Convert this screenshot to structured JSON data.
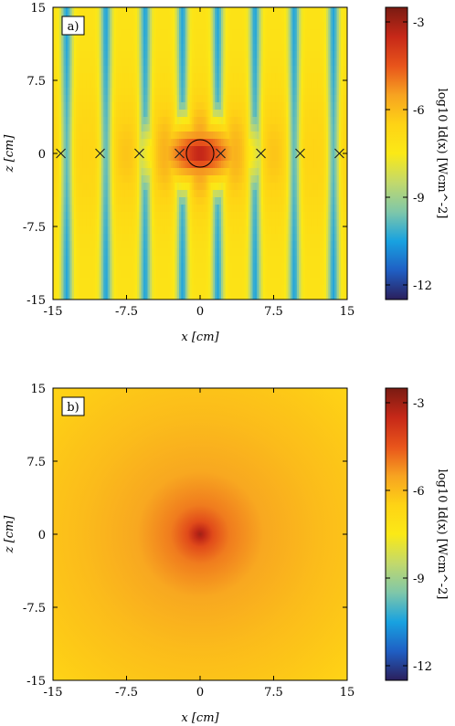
{
  "chart_data": [
    {
      "type": "heatmap",
      "panel_label": "a)",
      "xlabel": "x [cm]",
      "ylabel": "z [cm]",
      "xlim": [
        -15,
        15
      ],
      "ylim": [
        -15,
        15
      ],
      "x_ticks": [
        "-15",
        "-7.5",
        "0",
        "7.5",
        "15"
      ],
      "y_ticks": [
        "15",
        "7.5",
        "0",
        "-7.5",
        "-15"
      ],
      "colorbar": {
        "label": "log10 Id(x) [Wcm^-2]",
        "range": [
          -12.5,
          -2.5
        ],
        "ticks": [
          "-3",
          "-6",
          "-9",
          "-12"
        ]
      },
      "markers": [
        {
          "x": -14.2,
          "z": 0
        },
        {
          "x": -10.2,
          "z": 0
        },
        {
          "x": -6.2,
          "z": 0
        },
        {
          "x": -2.1,
          "z": 0
        },
        {
          "x": 2.1,
          "z": 0
        },
        {
          "x": 6.2,
          "z": 0
        },
        {
          "x": 10.2,
          "z": 0
        },
        {
          "x": 14.2,
          "z": 0
        }
      ],
      "circle": {
        "x": 0,
        "z": 0,
        "r": 1.4
      },
      "description_field": "periodic stripes along x; node lines (min ≈ -10) near x = ±1.8, ±5.5, ±9.5, ±13.5; peak ≈ -3 at origin"
    },
    {
      "type": "heatmap",
      "panel_label": "b)",
      "xlabel": "x [cm]",
      "ylabel": "z [cm]",
      "xlim": [
        -15,
        15
      ],
      "ylim": [
        -15,
        15
      ],
      "x_ticks": [
        "-15",
        "-7.5",
        "0",
        "7.5",
        "15"
      ],
      "y_ticks": [
        "15",
        "7.5",
        "0",
        "-7.5",
        "-15"
      ],
      "colorbar": {
        "label": "log10 Id(x) [Wcm^-2]",
        "range": [
          -12.5,
          -2.5
        ],
        "ticks": [
          "-3",
          "-6",
          "-9",
          "-12"
        ]
      },
      "description_field": "radially symmetric decay from peak ≈ -3 at origin to ≈ -6.5 at corners"
    }
  ],
  "colormap": [
    "#2b1f5c",
    "#1f5fc4",
    "#18a2e0",
    "#7fc7a9",
    "#c2d96c",
    "#fbe916",
    "#fed315",
    "#f7a321",
    "#e8541b",
    "#c62818",
    "#7a1b12"
  ]
}
